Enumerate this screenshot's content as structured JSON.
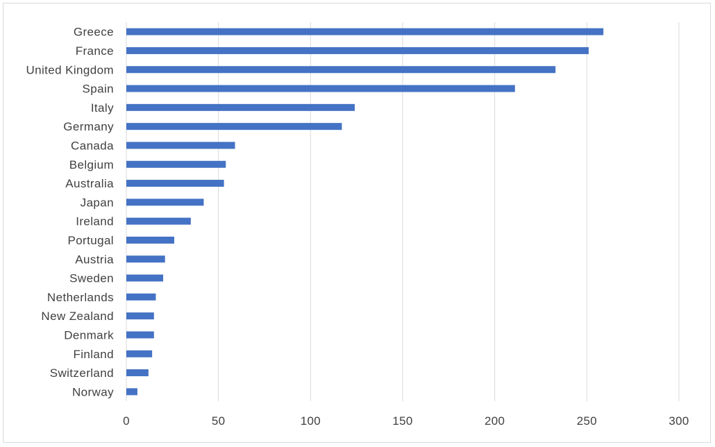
{
  "chart_data": {
    "type": "bar",
    "orientation": "horizontal",
    "title": "",
    "xlabel": "",
    "ylabel": "",
    "categories": [
      "Greece",
      "France",
      "United Kingdom",
      "Spain",
      "Italy",
      "Germany",
      "Canada",
      "Belgium",
      "Australia",
      "Japan",
      "Ireland",
      "Portugal",
      "Austria",
      "Sweden",
      "Netherlands",
      "New Zealand",
      "Denmark",
      "Finland",
      "Switzerland",
      "Norway"
    ],
    "values": [
      259,
      251,
      233,
      211,
      124,
      117,
      59,
      54,
      53,
      42,
      35,
      26,
      21,
      20,
      16,
      15,
      15,
      14,
      12,
      6
    ],
    "xlim": [
      0,
      300
    ],
    "x_ticks": [
      "0",
      "50",
      "100",
      "150",
      "200",
      "250",
      "300"
    ],
    "grid": "vertical",
    "legend": "none",
    "bar_color": "#4472c4"
  }
}
